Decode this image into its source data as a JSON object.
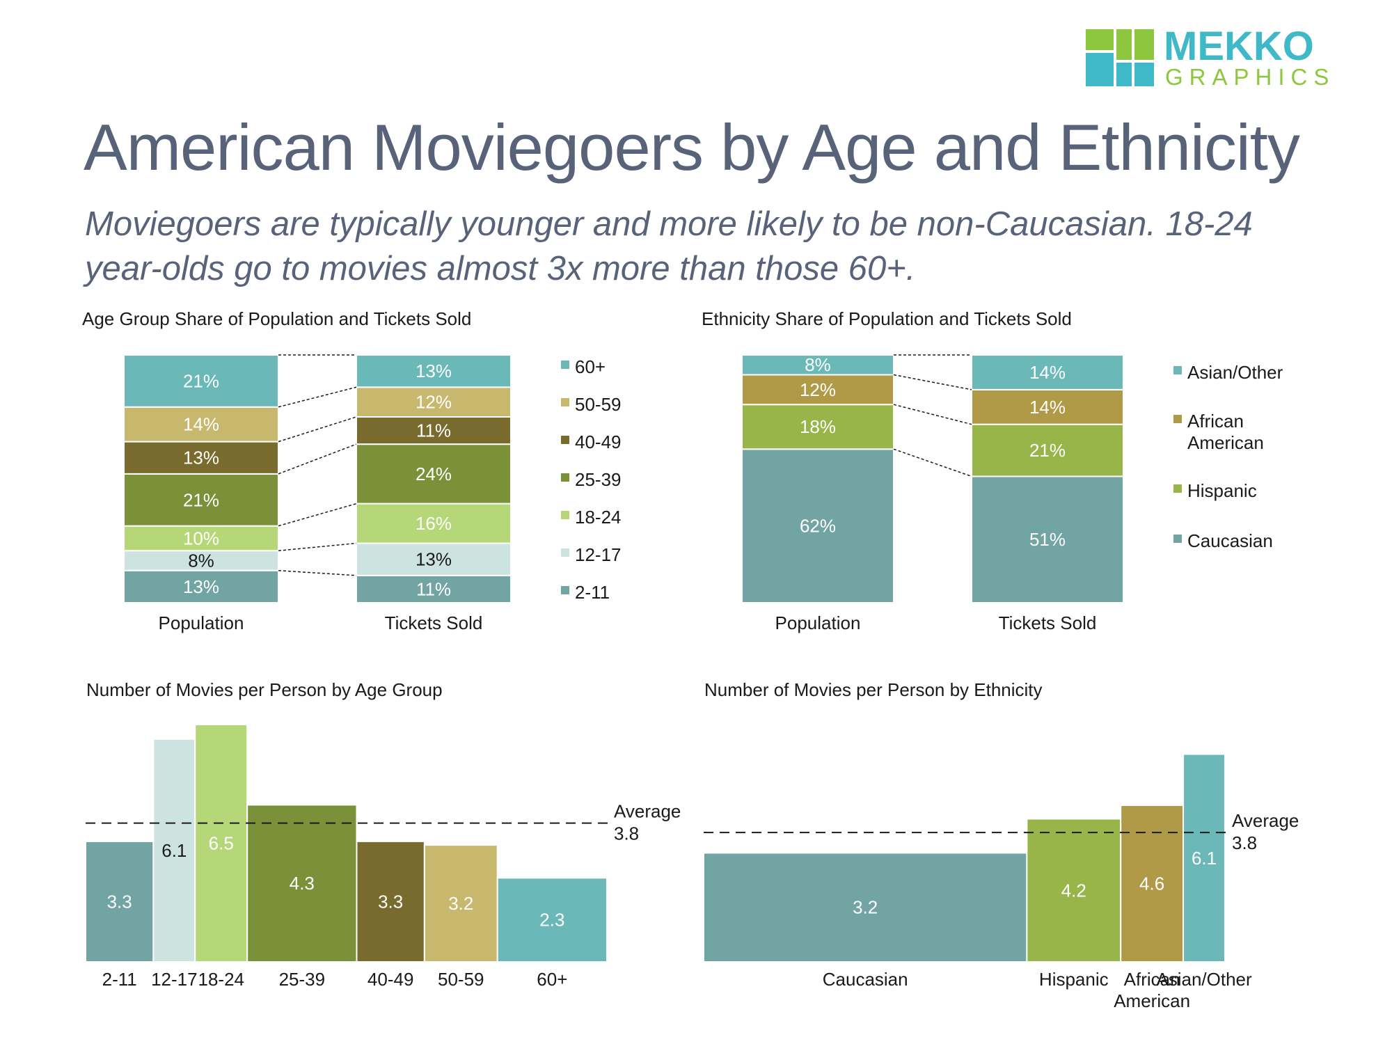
{
  "header": {
    "title": "American Moviegoers by Age and Ethnicity",
    "subtitle": "Moviegoers are typically younger and more likely to be non-Caucasian.  18-24 year-olds go to movies almost 3x more than those 60+.",
    "logo": {
      "line1": "MEKKO",
      "line2": "GRAPHICS",
      "accent": "#8dc63f",
      "brand": "#3fb8c8"
    }
  },
  "chart_data": [
    {
      "id": "age-share",
      "type": "bar",
      "stacked": true,
      "title": "Age Group Share of Population and Tickets Sold",
      "categories": [
        "Population",
        "Tickets Sold"
      ],
      "series": [
        {
          "name": "2-11",
          "values": [
            13,
            11
          ],
          "color": "#73a4a4",
          "label_color": "#ffffff"
        },
        {
          "name": "12-17",
          "values": [
            8,
            13
          ],
          "color": "#cde3df",
          "label_color": "#1a1a1a"
        },
        {
          "name": "18-24",
          "values": [
            10,
            16
          ],
          "color": "#b5d777",
          "label_color": "#ffffff"
        },
        {
          "name": "25-39",
          "values": [
            21,
            24
          ],
          "color": "#7a9139",
          "label_color": "#ffffff"
        },
        {
          "name": "40-49",
          "values": [
            13,
            11
          ],
          "color": "#796a2e",
          "label_color": "#ffffff"
        },
        {
          "name": "50-59",
          "values": [
            14,
            12
          ],
          "color": "#c8b86e",
          "label_color": "#ffffff"
        },
        {
          "name": "60+",
          "values": [
            21,
            13
          ],
          "color": "#6ab8b8",
          "label_color": "#ffffff"
        }
      ],
      "data_labels": [
        [
          "13%",
          "8%",
          "10%",
          "21%",
          "13%",
          "14%",
          "21%"
        ],
        [
          "11%",
          "13%",
          "16%",
          "24%",
          "11%",
          "12%",
          "13%"
        ]
      ],
      "legend": "right",
      "connectors": true
    },
    {
      "id": "ethnicity-share",
      "type": "bar",
      "stacked": true,
      "title": "Ethnicity Share of Population and Tickets Sold",
      "categories": [
        "Population",
        "Tickets Sold"
      ],
      "series": [
        {
          "name": "Caucasian",
          "values": [
            62,
            51
          ],
          "color": "#73a4a4",
          "label_color": "#ffffff"
        },
        {
          "name": "Hispanic",
          "values": [
            18,
            21
          ],
          "color": "#98b54a",
          "label_color": "#ffffff"
        },
        {
          "name": "African American",
          "values": [
            12,
            14
          ],
          "color": "#b09a48",
          "label_color": "#ffffff"
        },
        {
          "name": "Asian/Other",
          "values": [
            8,
            14
          ],
          "color": "#6ab8b8",
          "label_color": "#ffffff"
        }
      ],
      "legend_labels": [
        [
          "Caucasian"
        ],
        [
          "Hispanic"
        ],
        [
          "African",
          "American"
        ],
        [
          "Asian/Other"
        ]
      ],
      "data_labels": [
        [
          "62%",
          "18%",
          "12%",
          "8%"
        ],
        [
          "51%",
          "21%",
          "14%",
          "14%"
        ]
      ],
      "legend": "right",
      "connectors": true
    },
    {
      "id": "movies-by-age",
      "type": "bar",
      "variable_width": true,
      "title": "Number of  Movies per Person by Age Group",
      "categories": [
        "2-11",
        "12-17",
        "18-24",
        "25-39",
        "40-49",
        "50-59",
        "60+"
      ],
      "values": [
        3.3,
        6.1,
        6.5,
        4.3,
        3.3,
        3.2,
        2.3
      ],
      "widths": [
        13,
        8,
        10,
        21,
        13,
        14,
        21
      ],
      "colors": [
        "#73a4a4",
        "#cde3df",
        "#b5d777",
        "#7a9139",
        "#796a2e",
        "#c8b86e",
        "#6ab8b8"
      ],
      "label_colors": [
        "#ffffff",
        "#1a1a1a",
        "#ffffff",
        "#ffffff",
        "#ffffff",
        "#ffffff",
        "#ffffff"
      ],
      "ylim": [
        0,
        6.5
      ],
      "average": {
        "label": "Average",
        "value": 3.8
      }
    },
    {
      "id": "movies-by-ethnicity",
      "type": "bar",
      "variable_width": true,
      "title": "Number of Movies per Person by Ethnicity",
      "categories": [
        "Caucasian",
        "Hispanic",
        "African American",
        "Asian/Other"
      ],
      "category_lines": [
        [
          "Caucasian"
        ],
        [
          "Hispanic"
        ],
        [
          "African",
          "American"
        ],
        [
          "Asian/Other"
        ]
      ],
      "values": [
        3.2,
        4.2,
        4.6,
        6.1
      ],
      "widths": [
        62,
        18,
        12,
        8
      ],
      "colors": [
        "#73a4a4",
        "#98b54a",
        "#b09a48",
        "#6ab8b8"
      ],
      "label_colors": [
        "#ffffff",
        "#ffffff",
        "#ffffff",
        "#ffffff"
      ],
      "ylim": [
        0,
        6.5
      ],
      "average": {
        "label": "Average",
        "value": 3.8
      }
    }
  ]
}
